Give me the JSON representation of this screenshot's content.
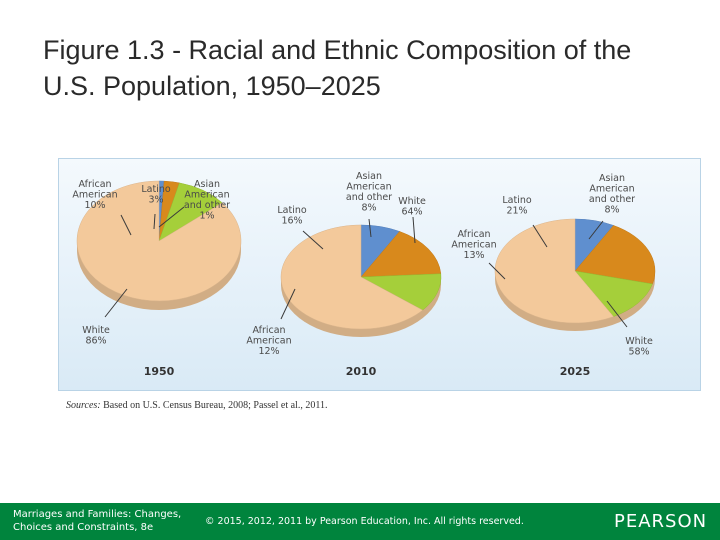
{
  "slide": {
    "title": "Figure 1.3 - Racial and Ethnic Composition of the U.S. Population, 1950–2025"
  },
  "colors": {
    "white": "#f3c99b",
    "african_american": "#a5cf3a",
    "latino": "#d8891c",
    "asian_other": "#5f8fcf"
  },
  "chart_data": [
    {
      "type": "pie",
      "year_label": "1950",
      "slices": [
        {
          "key": "white",
          "label": [
            "White",
            "86%"
          ],
          "value": 86
        },
        {
          "key": "african_american",
          "label": [
            "African",
            "American",
            "10%"
          ],
          "value": 10
        },
        {
          "key": "latino",
          "label": [
            "Latino",
            "3%"
          ],
          "value": 3
        },
        {
          "key": "asian_other",
          "label": [
            "Asian",
            "American",
            "and other",
            "1%"
          ],
          "value": 1
        }
      ]
    },
    {
      "type": "pie",
      "year_label": "2010",
      "slices": [
        {
          "key": "white",
          "label": [
            "White",
            "64%"
          ],
          "value": 64
        },
        {
          "key": "african_american",
          "label": [
            "African",
            "American",
            "12%"
          ],
          "value": 12
        },
        {
          "key": "latino",
          "label": [
            "Latino",
            "16%"
          ],
          "value": 16
        },
        {
          "key": "asian_other",
          "label": [
            "Asian",
            "American",
            "and other",
            "8%"
          ],
          "value": 8
        }
      ]
    },
    {
      "type": "pie",
      "year_label": "2025",
      "slices": [
        {
          "key": "white",
          "label": [
            "White",
            "58%"
          ],
          "value": 58
        },
        {
          "key": "african_american",
          "label": [
            "African",
            "American",
            "13%"
          ],
          "value": 13
        },
        {
          "key": "latino",
          "label": [
            "Latino",
            "21%"
          ],
          "value": 21
        },
        {
          "key": "asian_other",
          "label": [
            "Asian",
            "American",
            "and other",
            "8%"
          ],
          "value": 8
        }
      ]
    }
  ],
  "sources": {
    "label": "Sources:",
    "text": "Based on U.S. Census Bureau, 2008; Passel et al., 2011."
  },
  "footer": {
    "book_line1": "Marriages and Families: Changes,",
    "book_line2": "Choices and Constraints, 8e",
    "copyright": "© 2015, 2012, 2011 by Pearson Education, Inc. All rights reserved.",
    "logo": "PEARSON"
  }
}
